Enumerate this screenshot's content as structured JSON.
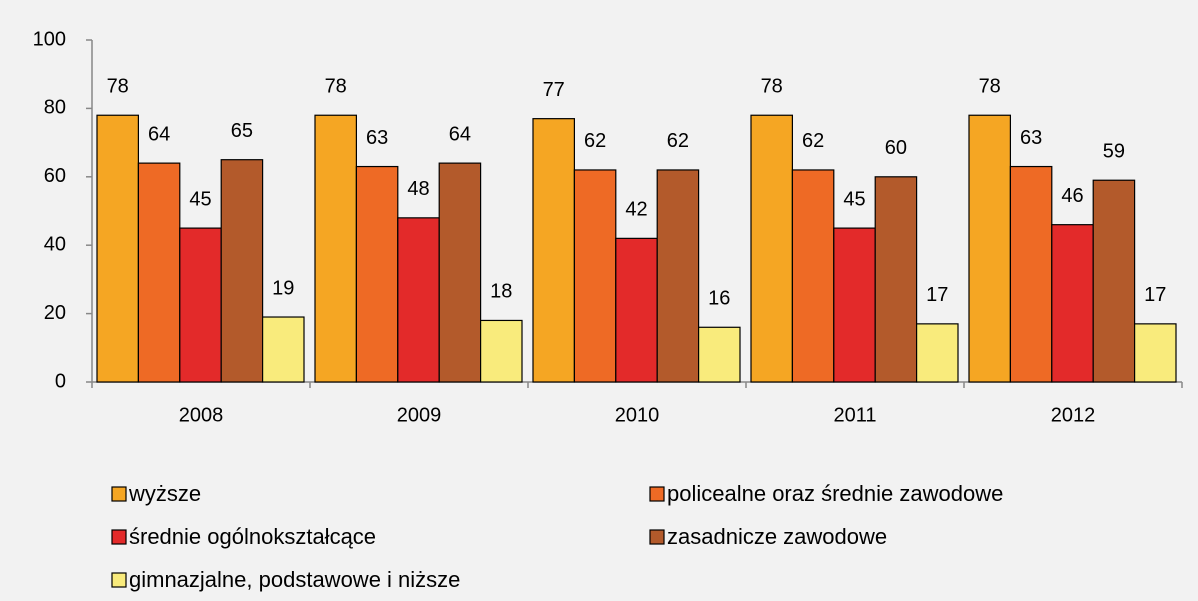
{
  "chart_data": {
    "type": "bar",
    "categories": [
      "2008",
      "2009",
      "2010",
      "2011",
      "2012"
    ],
    "series": [
      {
        "name": "wyższe",
        "color": "#f5a623",
        "values": [
          78,
          78,
          77,
          78,
          78
        ]
      },
      {
        "name": "policealne oraz średnie zawodowe",
        "color": "#ee6a25",
        "values": [
          64,
          63,
          62,
          62,
          63
        ]
      },
      {
        "name": "średnie ogólnokształcące",
        "color": "#e32a2a",
        "values": [
          45,
          48,
          42,
          45,
          46
        ]
      },
      {
        "name": "zasadnicze zawodowe",
        "color": "#b35a2b",
        "values": [
          65,
          64,
          62,
          60,
          59
        ]
      },
      {
        "name": "gimnazjalne, podstawowe i niższe",
        "color": "#f9eb7c",
        "values": [
          19,
          18,
          16,
          17,
          17
        ]
      }
    ],
    "ylim": [
      0,
      100
    ],
    "yticks": [
      0,
      20,
      40,
      60,
      80,
      100
    ]
  }
}
